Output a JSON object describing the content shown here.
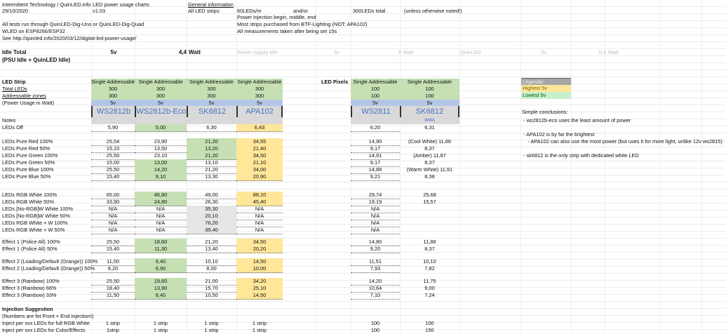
{
  "header": {
    "author": "Intermittent Technology / QuinLED.info",
    "date": "29/10/2020",
    "title": "LED power usage charts",
    "version": "v1.03",
    "general_info_label": "General information",
    "all_led_strips_label": "All LED strips:",
    "leds_per_m": "60LEDs/m",
    "and_or": "and/or",
    "leds_total": "300LEDs total",
    "unless_noted": "(unless otherwise noted!)",
    "info_lines": [
      "Power injection begin, middle, end",
      "Most strips purchased from BTF-Lighting (NOT: APA102)",
      "All measurements taken after being set 15s"
    ],
    "tests_line": "All tests run through QuinLED-Dig-Uno or QuinLED-Dig-Quad",
    "wled_line": "WLED on ESP8266/ESP32",
    "see_line": "See http://quinled.info/2020/03/12/digital-led-power-usage/"
  },
  "idle": {
    "label": "Idle Total",
    "sublabel": "(PSU Idle + QuinLED Idle)",
    "voltage": "5v",
    "watt_value": "4,4",
    "watt_unit": "Watt",
    "psu_label": "Power supply idle",
    "psu_voltage": "5v",
    "psu_value": "4",
    "psu_unit": "Watt",
    "quinled_label": "QuinLED",
    "quinled_voltage": "5v",
    "quinled_value": "0,4",
    "quinled_unit": "Watt"
  },
  "strip_table": {
    "section_label": "LED Strip",
    "row_labels": {
      "type": "",
      "total_leds": "Total LEDs",
      "zones": "Addressable zones",
      "power_usage": "(Power Usage in Watt)",
      "notes": "Notes"
    },
    "columns": [
      {
        "type": "Single Addressable",
        "total_leds": "300",
        "zones": "300",
        "voltage": "5v",
        "name": "WS2812b",
        "notes": ""
      },
      {
        "type": "Single Addressable",
        "total_leds": "300",
        "zones": "300",
        "voltage": "5v",
        "name": "WS2812b-Eco",
        "notes": ""
      },
      {
        "type": "Single Addressable",
        "total_leds": "300",
        "zones": "300",
        "voltage": "5v",
        "name": "SK6812",
        "notes": ""
      },
      {
        "type": "Single Addressable",
        "total_leds": "300",
        "zones": "300",
        "voltage": "5v",
        "name": "APA102",
        "notes": ""
      }
    ]
  },
  "pixel_table": {
    "section_label": "LED Pixels",
    "columns": [
      {
        "type": "Single Addressable",
        "total_leds": "100",
        "zones": "100",
        "voltage": "5v",
        "name": "WS2811",
        "notes": ""
      },
      {
        "type": "Single Addressable",
        "total_leds": "100",
        "zones": "100",
        "voltage": "5v",
        "name": "SK6812",
        "notes": "WWA"
      }
    ]
  },
  "rows": [
    {
      "label": "LEDs Off",
      "strip": [
        "5,90",
        "5,00",
        "6,30",
        "6,43"
      ],
      "hl": [
        "",
        "green",
        "",
        "yellow"
      ],
      "pixels": [
        "6,20",
        "6,31"
      ]
    },
    {
      "label": "LEDs Pure Red 100%",
      "strip": [
        "25,54",
        "23,90",
        "21,20",
        "34,55"
      ],
      "hl": [
        "",
        "",
        "green",
        "yellow"
      ],
      "pixels": [
        "14,90",
        "(Cool White) 11,88"
      ]
    },
    {
      "label": "LEDs Pure Red 50%",
      "strip": [
        "15,10",
        "13,50",
        "13,20",
        "21,40"
      ],
      "hl": [
        "",
        "",
        "green",
        "yellow"
      ],
      "pixels": [
        "9,17",
        "8,37"
      ]
    },
    {
      "label": "LEDs Pure Green 100%",
      "strip": [
        "25,50",
        "23,10",
        "21,20",
        "34,50"
      ],
      "hl": [
        "",
        "",
        "green",
        "yellow"
      ],
      "pixels": [
        "14,91",
        "(Amber) 11,87"
      ]
    },
    {
      "label": "LEDs Pure Green 50%",
      "strip": [
        "15,00",
        "13,00",
        "13,10",
        "21,10"
      ],
      "hl": [
        "",
        "green",
        "",
        "yellow"
      ],
      "pixels": [
        "9,17",
        "8,37"
      ]
    },
    {
      "label": "LEDs Pure Blue 100%",
      "strip": [
        "25,50",
        "14,20",
        "21,20",
        "34,00"
      ],
      "hl": [
        "",
        "green",
        "",
        "yellow"
      ],
      "pixels": [
        "14,88",
        "(Warm White) 11,91"
      ]
    },
    {
      "label": "LEDs Pure Blue 50%",
      "strip": [
        "15,40",
        "9,10",
        "13,30",
        "20,90"
      ],
      "hl": [
        "",
        "green",
        "",
        "yellow"
      ],
      "pixels": [
        "9,21",
        "8,38"
      ]
    },
    {
      "label": "LEDs RGB White 100%",
      "strip": [
        "65,00",
        "46,80",
        "49,00",
        "88,10"
      ],
      "hl": [
        "",
        "green",
        "",
        "yellow"
      ],
      "pixels": [
        "29,74",
        "25,68"
      ]
    },
    {
      "label": "LEDs RGB White 50%",
      "strip": [
        "33,90",
        "24,80",
        "26,30",
        "45,40"
      ],
      "hl": [
        "",
        "green",
        "",
        "yellow"
      ],
      "pixels": [
        "19,19",
        "15,57"
      ]
    },
    {
      "label": "LEDs [No-RGB]W White 100%",
      "strip": [
        "N/A",
        "N/A",
        "35,30",
        "N/A"
      ],
      "hl": [
        "",
        "",
        "gray",
        ""
      ],
      "pixels": [
        "N/A",
        ""
      ]
    },
    {
      "label": "LEDs [No-RGB]W White 50%",
      "strip": [
        "N/A",
        "N/A",
        "20,10",
        "N/A"
      ],
      "hl": [
        "",
        "",
        "gray",
        ""
      ],
      "pixels": [
        "N/A",
        ""
      ]
    },
    {
      "label": "LEDs RGB White + W 100%",
      "strip": [
        "N/A",
        "N/A",
        "76,20",
        "N/A"
      ],
      "hl": [
        "",
        "",
        "gray",
        ""
      ],
      "pixels": [
        "N/A",
        ""
      ]
    },
    {
      "label": "LEDs RGB White + W 50%",
      "strip": [
        "N/A",
        "N/A",
        "39,40",
        "N/A"
      ],
      "hl": [
        "",
        "",
        "gray",
        ""
      ],
      "pixels": [
        "N/A",
        ""
      ]
    },
    {
      "label": "Effect 1 (Police All) 100%",
      "strip": [
        "25,50",
        "18,60",
        "21,20",
        "34,50"
      ],
      "hl": [
        "",
        "green",
        "",
        "yellow"
      ],
      "pixels": [
        "14,80",
        "11,88"
      ]
    },
    {
      "label": "Effect 1 (Police All) 50%",
      "strip": [
        "15,40",
        "11,30",
        "13,40",
        "20,20"
      ],
      "hl": [
        "",
        "green",
        "",
        "yellow"
      ],
      "pixels": [
        "9,20",
        "8,37"
      ]
    },
    {
      "label": "Effect 2 (Loading/Default (Orange)) 100%",
      "strip": [
        "11,00",
        "9,40",
        "10,10",
        "14,50"
      ],
      "hl": [
        "",
        "green",
        "",
        "yellow"
      ],
      "pixels": [
        "11,51",
        "10,10"
      ]
    },
    {
      "label": "Effect 2 (Loading/Default (Orange)) 50%",
      "strip": [
        "8,20",
        "6,90",
        "8,00",
        "10,00"
      ],
      "hl": [
        "",
        "green",
        "",
        "yellow"
      ],
      "pixels": [
        "7,93",
        "7,82"
      ]
    },
    {
      "label": "Effect 3 (Rainbow) 100%",
      "strip": [
        "25,50",
        "19,60",
        "21,00",
        "34,20"
      ],
      "hl": [
        "",
        "green",
        "",
        "yellow"
      ],
      "pixels": [
        "14,20",
        "11,75"
      ]
    },
    {
      "label": "Effect 3 (Rainbow) 66%",
      "strip": [
        "18,40",
        "13,90",
        "15,70",
        "25,10"
      ],
      "hl": [
        "",
        "green",
        "",
        "yellow"
      ],
      "pixels": [
        "10,64",
        "9,00"
      ]
    },
    {
      "label": "Effect 3 (Rainbow) 33%",
      "strip": [
        "11,50",
        "8,40",
        "10,50",
        "14,50"
      ],
      "hl": [
        "",
        "green",
        "",
        "yellow"
      ],
      "pixels": [
        "7,10",
        "7,24"
      ]
    }
  ],
  "injection": {
    "label": "Injection Suggestion",
    "note": "(Numbers are fot Front + End Injection!)",
    "rows": [
      {
        "label": "Inject per xxx LEDs for full RGB White",
        "strip": [
          "1 strip",
          "1 strip",
          "1 strip",
          "1 strip"
        ],
        "pixels": [
          "100",
          "100"
        ]
      },
      {
        "label": "Inject per xxx LEDs for Color/Effects",
        "strip": [
          "1strip",
          "1 strip",
          "1 strip",
          "1 strip"
        ],
        "pixels": [
          "100",
          "150"
        ]
      }
    ]
  },
  "legend": {
    "title": "Legenda:",
    "highest": "Highest 5v",
    "lowest": "Lowest 5v"
  },
  "conclusions": {
    "title": "Simple conclusions:",
    "lines": [
      " - ws2812b-eco uses the least amount of power",
      " - APA102 is by far the brightest",
      "    - APA102 can also use the most power (but uses it for more light, unlike 12v ws2815)",
      " - sk6812 is the only strip with dedicated white LED"
    ]
  },
  "colors": {
    "green": "#c6e0b4",
    "blue": "#b4c6e7",
    "yellow": "#ffe699",
    "gray": "#d9d9d9",
    "strip_name": "#4472c4"
  }
}
